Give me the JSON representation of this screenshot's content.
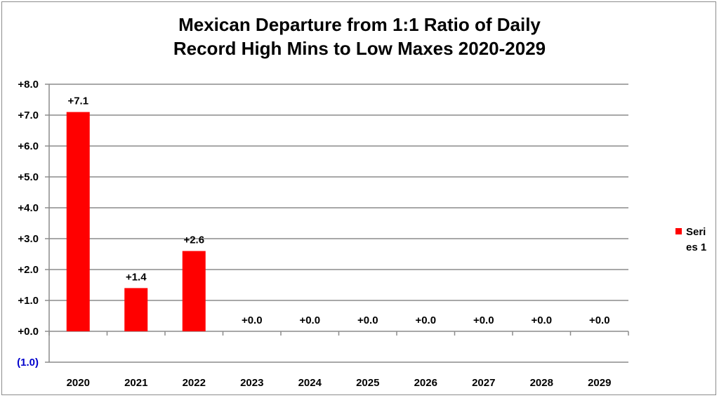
{
  "chart_data": {
    "type": "bar",
    "title_lines": [
      "Mexican Departure from 1:1 Ratio of Daily",
      "Record High Mins to Low Maxes 2020-2029"
    ],
    "categories": [
      "2020",
      "2021",
      "2022",
      "2023",
      "2024",
      "2025",
      "2026",
      "2027",
      "2028",
      "2029"
    ],
    "series": [
      {
        "name": "Series 1",
        "values": [
          7.1,
          1.4,
          2.6,
          0.0,
          0.0,
          0.0,
          0.0,
          0.0,
          0.0,
          0.0
        ],
        "color": "#ff0000"
      }
    ],
    "data_labels": [
      "+7.1",
      "+1.4",
      "+2.6",
      "+0.0",
      "+0.0",
      "+0.0",
      "+0.0",
      "+0.0",
      "+0.0",
      "+0.0"
    ],
    "y_ticks": [
      -1,
      0,
      1,
      2,
      3,
      4,
      5,
      6,
      7,
      8
    ],
    "y_tick_labels": [
      "(1.0)",
      "+0.0",
      "+1.0",
      "+2.0",
      "+3.0",
      "+4.0",
      "+5.0",
      "+6.0",
      "+7.0",
      "+8.0"
    ],
    "negative_tick_color": "#0000cc",
    "ylim": [
      -1,
      8
    ],
    "grid": true,
    "gridline_color": "#8c8c8c",
    "legend_position": "right",
    "legend_label": "Series 1"
  }
}
